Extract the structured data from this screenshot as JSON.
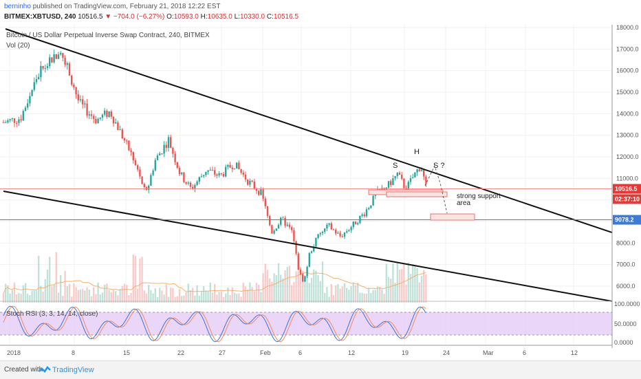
{
  "header": {
    "author": "berninho",
    "published_text": "published on TradingView.com, February 21, 2018 12:22 EST",
    "symbol": "BITMEX:XBTUSD, 240",
    "last": "10516.5",
    "change": "−704.0 (−6.27%)",
    "ohlc": {
      "o_label": "O:",
      "o": "10593.0",
      "h_label": "H:",
      "h": "10635.0",
      "l_label": "L:",
      "l": "10330.0",
      "c_label": "C:",
      "c": "10516.5"
    },
    "down_arrow": "▼"
  },
  "chart": {
    "title": "Bitcoin / US Dollar Perpetual Inverse Swap Contract, 240, BITMEX",
    "volume_label": "Vol (20)",
    "stoch_label": "Stoch RSI (3, 3, 14, 14, close)",
    "price_ticks": [
      "18000.0",
      "17000.0",
      "16000.0",
      "15000.0",
      "14000.0",
      "13000.0",
      "12000.0",
      "11000.0",
      "8000.0",
      "7000.0",
      "6000.0"
    ],
    "stoch_ticks": [
      "100.0000",
      "50.0000",
      "0.0000"
    ],
    "date_ticks": [
      "2018",
      "8",
      "15",
      "22",
      "27",
      "Feb",
      "6",
      "12",
      "19",
      "24",
      "Mar",
      "6",
      "12"
    ],
    "price_badges": {
      "current": "10516.5",
      "countdown": "02:37:10",
      "support": "9078.2"
    },
    "annotations": {
      "shoulder_left": "S",
      "head": "H",
      "shoulder_right": "S ?",
      "support_line1": "strong support",
      "support_line2": "area"
    },
    "colors": {
      "up": "#26a69a",
      "down": "#ef5350",
      "current_line": "#f28b82",
      "support_line": "#3d7bd9",
      "stoch_fill": "#e1c4f7",
      "ma": "#f5b06b"
    }
  },
  "chart_data": {
    "type": "candlestick",
    "symbol": "BITMEX:XBTUSD",
    "interval": "240",
    "y_range": [
      5500,
      18200
    ],
    "series": [
      {
        "name": "price",
        "x": [
          "2018",
          "8",
          "15",
          "22",
          "27",
          "Feb",
          "6",
          "12",
          "19"
        ],
        "values": [
          13700,
          16000,
          11500,
          11000,
          11300,
          10000,
          6500,
          8500,
          11300
        ]
      }
    ],
    "current_price": 10516.5,
    "support_level": 9078.2,
    "stoch_rsi_range": [
      0,
      100
    ]
  },
  "footer": {
    "created_with": "Created with",
    "brand": "TradingView"
  }
}
